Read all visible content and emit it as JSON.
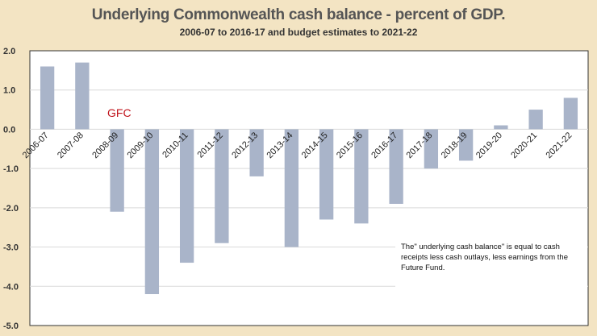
{
  "chart_data": {
    "type": "bar",
    "title": "Underlying Commonwealth cash balance - percent of GDP.",
    "subtitle": "2006-07 to 2016-17 and budget estimates to 2021-22",
    "xlabel": "",
    "ylabel": "",
    "ylim": [
      -5.0,
      2.0
    ],
    "yticks": [
      "2.0",
      "1.0",
      "0.0",
      "-1.0",
      "-2.0",
      "-3.0",
      "-4.0",
      "-5.0"
    ],
    "ytick_values": [
      2,
      1,
      0,
      -1,
      -2,
      -3,
      -4,
      -5
    ],
    "grid": true,
    "categories": [
      "2006-07",
      "2007-08",
      "2008-09",
      "2009-10",
      "2010-11",
      "2011-12",
      "2012-13",
      "2013-14",
      "2014-15",
      "2015-16",
      "2016-17",
      "2017-18",
      "2018-19",
      "2019-20",
      "2020-21",
      "2021-22"
    ],
    "values": [
      1.6,
      1.7,
      -2.1,
      -4.2,
      -3.4,
      -2.9,
      -1.2,
      -3.0,
      -2.3,
      -2.4,
      -1.9,
      -1.0,
      -0.8,
      0.1,
      0.5,
      0.8
    ],
    "bar_color": "#a9b4c9",
    "annotations": [
      {
        "text": "GFC",
        "color": "#c0141c",
        "near_category": "2008-09"
      },
      {
        "text": "The\"  underlying cash balance\" is equal to  cash receipts less cash outlays, less earnings from the Future Fund.",
        "placement": "bottom-right"
      }
    ]
  }
}
